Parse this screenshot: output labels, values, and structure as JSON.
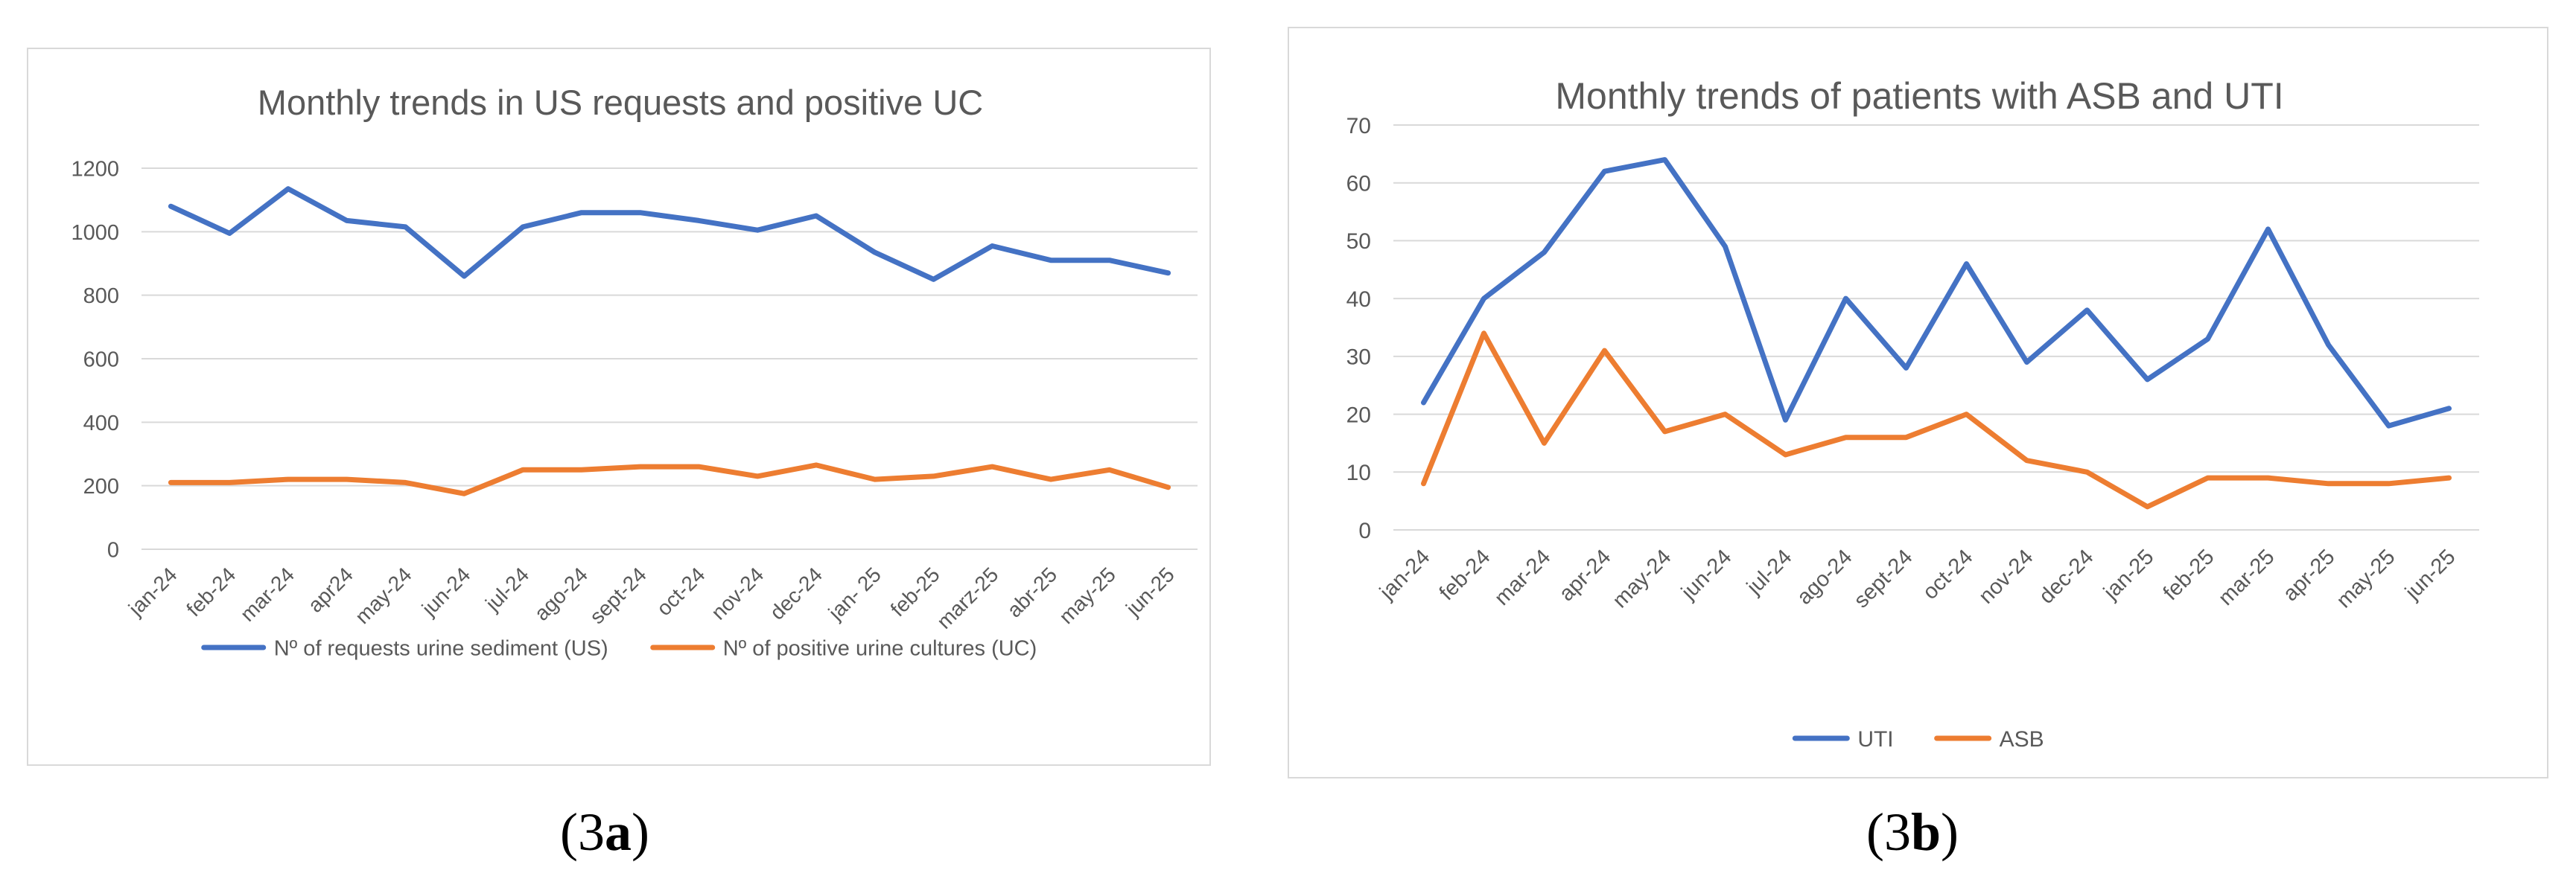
{
  "chart_data": [
    {
      "type": "line",
      "panel": "3a",
      "title": "Monthly trends in US requests and positive UC",
      "categories": [
        "jan-24",
        "feb-24",
        "mar-24",
        "apr24",
        "may-24",
        "jun-24",
        "jul-24",
        "ago-24",
        "sept-24",
        "oct-24",
        "nov-24",
        "dec-24",
        "jan- 25",
        "feb-25",
        "marz-25",
        "abr-25",
        "may-25",
        "jun-25"
      ],
      "yticks": [
        0,
        200,
        400,
        600,
        800,
        1000,
        1200
      ],
      "ylim": [
        0,
        1200
      ],
      "grid": true,
      "legend_position": "bottom",
      "xlabel": "",
      "ylabel": "",
      "series": [
        {
          "name": "Nº of requests urine sediment (US)",
          "color": "#4472c4",
          "values": [
            1080,
            995,
            1135,
            1035,
            1015,
            860,
            1015,
            1060,
            1060,
            1035,
            1005,
            1050,
            935,
            850,
            955,
            910,
            910,
            870
          ]
        },
        {
          "name": "Nº of positive urine cultures (UC)",
          "color": "#ed7d31",
          "values": [
            210,
            210,
            220,
            220,
            210,
            175,
            250,
            250,
            260,
            260,
            230,
            265,
            220,
            230,
            260,
            220,
            250,
            195
          ]
        }
      ]
    },
    {
      "type": "line",
      "panel": "3b",
      "title": "Monthly trends of patients with ASB and UTI",
      "categories": [
        "jan-24",
        "feb-24",
        "mar-24",
        "apr-24",
        "may-24",
        "jun-24",
        "jul-24",
        "ago-24",
        "sept-24",
        "oct-24",
        "nov-24",
        "dec-24",
        "jan-25",
        "feb-25",
        "mar-25",
        "apr-25",
        "may-25",
        "jun-25"
      ],
      "yticks": [
        0,
        10,
        20,
        30,
        40,
        50,
        60,
        70
      ],
      "ylim": [
        0,
        70
      ],
      "grid": true,
      "legend_position": "bottom",
      "xlabel": "",
      "ylabel": "",
      "series": [
        {
          "name": "UTI",
          "color": "#4472c4",
          "values": [
            22,
            40,
            48,
            62,
            64,
            49,
            19,
            40,
            28,
            46,
            29,
            38,
            26,
            33,
            52,
            32,
            18,
            21
          ]
        },
        {
          "name": "ASB",
          "color": "#ed7d31",
          "values": [
            8,
            34,
            15,
            31,
            17,
            20,
            13,
            16,
            16,
            20,
            12,
            10,
            4,
            9,
            9,
            8,
            8,
            9
          ]
        }
      ]
    }
  ],
  "captions": {
    "a_open": "(3",
    "a_letter": "a",
    "a_close": ")",
    "b_open": "(3",
    "b_letter": "b",
    "b_close": ")"
  },
  "colors": {
    "grid": "#d9d9d9",
    "text": "#595959"
  }
}
